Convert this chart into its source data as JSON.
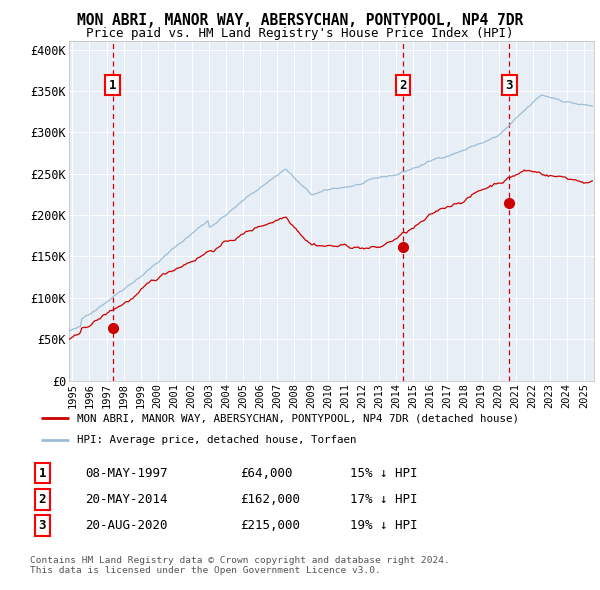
{
  "title": "MON ABRI, MANOR WAY, ABERSYCHAN, PONTYPOOL, NP4 7DR",
  "subtitle": "Price paid vs. HM Land Registry's House Price Index (HPI)",
  "plot_bg_color": "#e8eef5",
  "hpi_color": "#9dbdd6",
  "price_color": "#cc0000",
  "dashed_line_color": "#cc0000",
  "ylabel_ticks": [
    "£0",
    "£50K",
    "£100K",
    "£150K",
    "£200K",
    "£250K",
    "£300K",
    "£350K",
    "£400K"
  ],
  "ytick_values": [
    0,
    50000,
    100000,
    150000,
    200000,
    250000,
    300000,
    350000,
    400000
  ],
  "ylim": [
    0,
    410000
  ],
  "xlim_start": 1994.8,
  "xlim_end": 2025.6,
  "sales": [
    {
      "label": "1",
      "date": 1997.36,
      "price": 64000,
      "date_str": "08-MAY-1997",
      "price_str": "£64,000",
      "hpi_pct": "15% ↓ HPI"
    },
    {
      "label": "2",
      "date": 2014.38,
      "price": 162000,
      "date_str": "20-MAY-2014",
      "price_str": "£162,000",
      "hpi_pct": "17% ↓ HPI"
    },
    {
      "label": "3",
      "date": 2020.64,
      "price": 215000,
      "date_str": "20-AUG-2020",
      "price_str": "£215,000",
      "hpi_pct": "19% ↓ HPI"
    }
  ],
  "legend_line1": "MON ABRI, MANOR WAY, ABERSYCHAN, PONTYPOOL, NP4 7DR (detached house)",
  "legend_line2": "HPI: Average price, detached house, Torfaen",
  "footer1": "Contains HM Land Registry data © Crown copyright and database right 2024.",
  "footer2": "This data is licensed under the Open Government Licence v3.0."
}
